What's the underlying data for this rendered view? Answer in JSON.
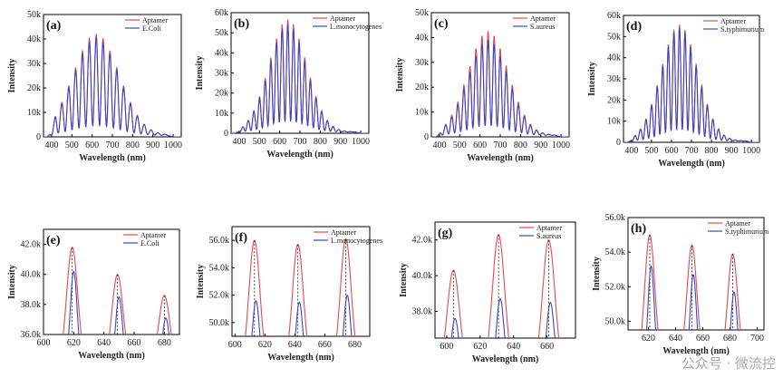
{
  "watermark": "公众号 · 微流控",
  "colors": {
    "aptamer": "#e8484d",
    "target": "#3b45c8",
    "dash": "#222222",
    "axis": "#000000"
  },
  "chart_data": [
    {
      "type": "line",
      "label": "(a)",
      "xlabel": "Wavelength (nm)",
      "ylabel": "Intensity",
      "xlim": [
        360,
        1040
      ],
      "ylim": [
        0,
        50000
      ],
      "xticks": [
        400,
        500,
        600,
        700,
        800,
        900,
        1000
      ],
      "xtick_labels": [
        "400",
        "500",
        "600",
        "700",
        "800",
        "900",
        "1000"
      ],
      "yticks": [
        0,
        10000,
        20000,
        30000,
        40000,
        50000
      ],
      "ytick_labels": [
        "0",
        "10k",
        "20k",
        "30k",
        "40k",
        "50k"
      ],
      "legend": "top-right",
      "series": [
        {
          "name": "Aptamer",
          "peak": 41500,
          "ratio": 1.0
        },
        {
          "name": "E.Coli",
          "peak": 40000,
          "ratio": 0.95
        }
      ],
      "signal": {
        "start": 380,
        "end": 1000,
        "center": 620,
        "width": 160,
        "spacing": 34
      }
    },
    {
      "type": "line",
      "label": "(b)",
      "xlabel": "Wavelength (nm)",
      "ylabel": "Intensity",
      "xlim": [
        360,
        1040
      ],
      "ylim": [
        0,
        60000
      ],
      "xticks": [
        400,
        500,
        600,
        700,
        800,
        900,
        1000
      ],
      "xtick_labels": [
        "400",
        "500",
        "600",
        "700",
        "800",
        "900",
        "1000"
      ],
      "yticks": [
        0,
        10000,
        20000,
        30000,
        40000,
        50000,
        60000
      ],
      "ytick_labels": [
        "0",
        "10k",
        "20k",
        "30k",
        "40k",
        "50k",
        "60k"
      ],
      "legend": "top-right",
      "series": [
        {
          "name": "Aptamer",
          "peak": 56000,
          "ratio": 1.0
        },
        {
          "name": "L.monocytogenes",
          "peak": 53500,
          "ratio": 0.95
        }
      ],
      "signal": {
        "start": 380,
        "end": 1000,
        "center": 640,
        "width": 130,
        "spacing": 28
      }
    },
    {
      "type": "line",
      "label": "(c)",
      "xlabel": "Wavelength (nm)",
      "ylabel": "Intensity",
      "xlim": [
        360,
        1040
      ],
      "ylim": [
        0,
        50000
      ],
      "xticks": [
        400,
        500,
        600,
        700,
        800,
        900,
        1000
      ],
      "xtick_labels": [
        "400",
        "500",
        "600",
        "700",
        "800",
        "900",
        "1000"
      ],
      "yticks": [
        0,
        10000,
        20000,
        30000,
        40000,
        50000
      ],
      "ytick_labels": [
        "0",
        "10k",
        "20k",
        "30k",
        "40k",
        "50k"
      ],
      "legend": "top-right",
      "series": [
        {
          "name": "Aptamer",
          "peak": 42000,
          "ratio": 1.0
        },
        {
          "name": "S.aureus",
          "peak": 38500,
          "ratio": 0.92
        }
      ],
      "signal": {
        "start": 380,
        "end": 1000,
        "center": 640,
        "width": 140,
        "spacing": 30
      }
    },
    {
      "type": "line",
      "label": "(d)",
      "xlabel": "Wavelength (nm)",
      "ylabel": "Intensity",
      "xlim": [
        360,
        1040
      ],
      "ylim": [
        0,
        60000
      ],
      "xticks": [
        400,
        500,
        600,
        700,
        800,
        900,
        1000
      ],
      "xtick_labels": [
        "400",
        "500",
        "600",
        "700",
        "800",
        "900",
        "1000"
      ],
      "yticks": [
        0,
        10000,
        20000,
        30000,
        40000,
        50000,
        60000
      ],
      "ytick_labels": [
        "0",
        "10k",
        "20k",
        "30k",
        "40k",
        "50k",
        "60k"
      ],
      "legend": "top-right",
      "series": [
        {
          "name": "Aptamer",
          "peak": 55000,
          "ratio": 1.0
        },
        {
          "name": "S.typhimurium",
          "peak": 53500,
          "ratio": 0.97
        }
      ],
      "signal": {
        "start": 380,
        "end": 1000,
        "center": 640,
        "width": 130,
        "spacing": 28
      }
    },
    {
      "type": "line",
      "label": "(e)",
      "xlabel": "Wavelength (nm)",
      "ylabel": "Intensity",
      "xlim": [
        600,
        690
      ],
      "ylim": [
        36000,
        43000
      ],
      "xticks": [
        600,
        620,
        640,
        660,
        680
      ],
      "xtick_labels": [
        "600",
        "620",
        "640",
        "660",
        "680"
      ],
      "yticks": [
        36000,
        38000,
        40000,
        42000
      ],
      "ytick_labels": [
        "36.0k",
        "38.0k",
        "40.0k",
        "42.0k"
      ],
      "legend": "top-right",
      "series": [
        {
          "name": "Aptamer",
          "peaks": [
            {
              "x": 619,
              "y": 41800
            },
            {
              "x": 649,
              "y": 40000
            },
            {
              "x": 680,
              "y": 38600
            }
          ]
        },
        {
          "name": "E.Coli",
          "peaks": [
            {
              "x": 620,
              "y": 40200
            },
            {
              "x": 650,
              "y": 38500
            },
            {
              "x": 681,
              "y": 37100
            }
          ]
        }
      ]
    },
    {
      "type": "line",
      "label": "(f)",
      "xlabel": "Wavelength (nm)",
      "ylabel": "Intensity",
      "xlim": [
        598,
        690
      ],
      "ylim": [
        49000,
        57000
      ],
      "xticks": [
        600,
        620,
        640,
        660,
        680
      ],
      "xtick_labels": [
        "600",
        "620",
        "640",
        "660",
        "680"
      ],
      "yticks": [
        50000,
        52000,
        54000,
        56000
      ],
      "ytick_labels": [
        "50.0k",
        "52.0k",
        "54.0k",
        "56.0k"
      ],
      "legend": "top-right",
      "series": [
        {
          "name": "Aptamer",
          "peaks": [
            {
              "x": 613,
              "y": 56000
            },
            {
              "x": 642,
              "y": 55700
            },
            {
              "x": 674,
              "y": 56100
            }
          ]
        },
        {
          "name": "L.monocytogenes",
          "peaks": [
            {
              "x": 614,
              "y": 51600
            },
            {
              "x": 643,
              "y": 51500
            },
            {
              "x": 675,
              "y": 52000
            }
          ]
        }
      ]
    },
    {
      "type": "line",
      "label": "(g)",
      "xlabel": "Wavelength (nm)",
      "ylabel": "Intensity",
      "xlim": [
        593,
        677
      ],
      "ylim": [
        36500,
        43000
      ],
      "xticks": [
        600,
        620,
        640,
        660
      ],
      "xtick_labels": [
        "600",
        "620",
        "640",
        "660"
      ],
      "yticks": [
        38000,
        40000,
        42000
      ],
      "ytick_labels": [
        "38.0k",
        "40.0k",
        "42.0k"
      ],
      "legend": "top-right",
      "series": [
        {
          "name": "Aptamer",
          "peaks": [
            {
              "x": 604,
              "y": 40300
            },
            {
              "x": 631,
              "y": 42300
            },
            {
              "x": 661,
              "y": 42000
            }
          ]
        },
        {
          "name": "S.aureus",
          "peaks": [
            {
              "x": 605,
              "y": 37600
            },
            {
              "x": 632,
              "y": 38700
            },
            {
              "x": 662,
              "y": 38500
            }
          ]
        }
      ]
    },
    {
      "type": "line",
      "label": "(h)",
      "xlabel": "Wavelength (nm)",
      "ylabel": "Intensity",
      "xlim": [
        605,
        705
      ],
      "ylim": [
        49500,
        56000
      ],
      "xticks": [
        620,
        640,
        660,
        680,
        700
      ],
      "xtick_labels": [
        "620",
        "640",
        "660",
        "680",
        "700"
      ],
      "yticks": [
        50000,
        52000,
        54000,
        56000
      ],
      "ytick_labels": [
        "50.0k",
        "52.0k",
        "54.0k",
        "56.0k"
      ],
      "legend": "top-right",
      "series": [
        {
          "name": "Aptamer",
          "peaks": [
            {
              "x": 621,
              "y": 55000
            },
            {
              "x": 652,
              "y": 54400
            },
            {
              "x": 682,
              "y": 53900
            }
          ]
        },
        {
          "name": "S.typhimurium",
          "peaks": [
            {
              "x": 622,
              "y": 53200
            },
            {
              "x": 653,
              "y": 52700
            },
            {
              "x": 683,
              "y": 51700
            }
          ]
        }
      ]
    }
  ]
}
